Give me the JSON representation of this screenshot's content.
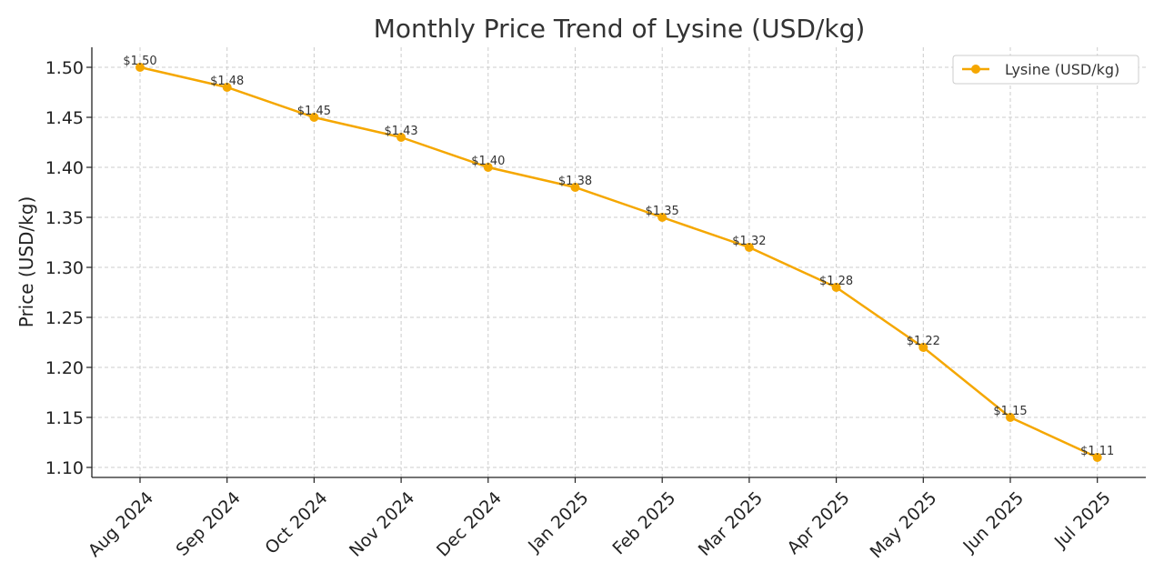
{
  "chart_data": {
    "type": "line",
    "title": "Monthly Price Trend of Lysine (USD/kg)",
    "xlabel": "",
    "ylabel": "Price (USD/kg)",
    "categories": [
      "Aug 2024",
      "Sep 2024",
      "Oct 2024",
      "Nov 2024",
      "Dec 2024",
      "Jan 2025",
      "Feb 2025",
      "Mar 2025",
      "Apr 2025",
      "May 2025",
      "Jun 2025",
      "Jul 2025"
    ],
    "series": [
      {
        "name": "Lysine (USD/kg)",
        "values": [
          1.5,
          1.48,
          1.45,
          1.43,
          1.4,
          1.38,
          1.35,
          1.32,
          1.28,
          1.22,
          1.15,
          1.11
        ],
        "data_labels": [
          "$1.50",
          "$1.48",
          "$1.45",
          "$1.43",
          "$1.40",
          "$1.38",
          "$1.35",
          "$1.32",
          "$1.28",
          "$1.22",
          "$1.15",
          "$1.11"
        ],
        "color": "#f5a700"
      }
    ],
    "yticks": [
      "1.10",
      "1.15",
      "1.20",
      "1.25",
      "1.30",
      "1.35",
      "1.40",
      "1.45",
      "1.50"
    ],
    "ylim": [
      1.09,
      1.52
    ],
    "grid": true,
    "legend_position": "top-right"
  }
}
